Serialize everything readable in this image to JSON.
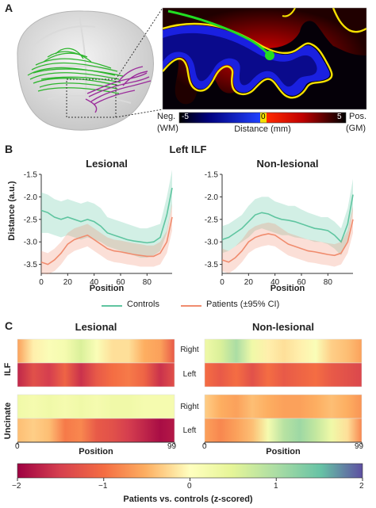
{
  "panel_a": {
    "letter": "A",
    "colorbar": {
      "neg_label": "Neg.",
      "neg_sub": "(WM)",
      "pos_label": "Pos.",
      "pos_sub": "(GM)",
      "min_label": "-5",
      "mid_label": "0",
      "max_label": "5",
      "title": "Distance (mm)"
    },
    "colors": {
      "bundle1": "#2db52d",
      "bundle2": "#9b2d9b",
      "streamline": "#22dd22",
      "contour": "#f5e000"
    }
  },
  "panel_b": {
    "letter": "B",
    "super_title": "Left ILF",
    "legend": {
      "controls": "Controls",
      "patients": "Patients (±95% CI)"
    },
    "colors": {
      "controls": "#5fc5a0",
      "patients": "#f08c6e"
    }
  },
  "panel_c": {
    "letter": "C",
    "titles": [
      "Lesional",
      "Non-lesional"
    ],
    "row_groups": [
      "ILF",
      "Uncinate"
    ],
    "row_labels": [
      "Right",
      "Left",
      "Right",
      "Left"
    ],
    "xticks": [
      "0",
      "99"
    ],
    "xlabel": "Position",
    "colorbar": {
      "ticks": [
        "−2",
        "−1",
        "0",
        "1",
        "2"
      ],
      "label": "Patients vs. controls (z-scored)"
    }
  },
  "chart_data": [
    {
      "type": "line",
      "title": "Lesional",
      "xlabel": "Position",
      "ylabel": "Distance (a.u.)",
      "xlim": [
        0,
        99
      ],
      "ylim": [
        -3.7,
        -1.5
      ],
      "xticks": [
        0,
        20,
        40,
        60,
        80
      ],
      "yticks": [
        -1.5,
        -2.0,
        -2.5,
        -3.0,
        -3.5
      ],
      "x": [
        0,
        5,
        10,
        15,
        20,
        25,
        30,
        35,
        40,
        45,
        50,
        55,
        60,
        65,
        70,
        75,
        80,
        85,
        90,
        95,
        99
      ],
      "series": [
        {
          "name": "Controls",
          "values": [
            -2.3,
            -2.35,
            -2.45,
            -2.5,
            -2.45,
            -2.5,
            -2.55,
            -2.5,
            -2.55,
            -2.65,
            -2.8,
            -2.85,
            -2.9,
            -2.95,
            -2.98,
            -3.0,
            -3.02,
            -3.0,
            -2.9,
            -2.4,
            -1.8
          ],
          "lower": [
            -2.8,
            -2.8,
            -2.85,
            -2.9,
            -2.85,
            -2.9,
            -2.95,
            -2.9,
            -2.95,
            -3.0,
            -3.1,
            -3.15,
            -3.2,
            -3.25,
            -3.3,
            -3.35,
            -3.35,
            -3.3,
            -3.2,
            -2.8,
            -2.2
          ],
          "upper": [
            -1.9,
            -1.95,
            -2.05,
            -2.1,
            -2.05,
            -2.1,
            -2.15,
            -2.1,
            -2.15,
            -2.25,
            -2.45,
            -2.5,
            -2.55,
            -2.6,
            -2.65,
            -2.7,
            -2.7,
            -2.65,
            -2.6,
            -2.0,
            -1.4
          ]
        },
        {
          "name": "Patients",
          "values": [
            -3.45,
            -3.5,
            -3.4,
            -3.25,
            -3.05,
            -2.95,
            -2.9,
            -2.85,
            -2.95,
            -3.05,
            -3.15,
            -3.2,
            -3.22,
            -3.25,
            -3.28,
            -3.3,
            -3.32,
            -3.32,
            -3.25,
            -3.0,
            -2.45
          ],
          "lower": [
            -3.7,
            -3.72,
            -3.65,
            -3.5,
            -3.3,
            -3.2,
            -3.15,
            -3.1,
            -3.2,
            -3.3,
            -3.4,
            -3.45,
            -3.47,
            -3.5,
            -3.52,
            -3.55,
            -3.55,
            -3.55,
            -3.5,
            -3.25,
            -2.75
          ],
          "upper": [
            -3.2,
            -3.25,
            -3.15,
            -3.0,
            -2.8,
            -2.7,
            -2.65,
            -2.6,
            -2.7,
            -2.8,
            -2.9,
            -2.95,
            -2.97,
            -3.0,
            -3.03,
            -3.05,
            -3.08,
            -3.08,
            -3.0,
            -2.75,
            -2.15
          ]
        }
      ]
    },
    {
      "type": "line",
      "title": "Non-lesional",
      "xlabel": "Position",
      "ylabel": "",
      "xlim": [
        0,
        99
      ],
      "ylim": [
        -3.7,
        -1.5
      ],
      "xticks": [
        0,
        20,
        40,
        60,
        80
      ],
      "yticks": [
        -1.5,
        -2.0,
        -2.5,
        -3.0,
        -3.5
      ],
      "x": [
        0,
        5,
        10,
        15,
        20,
        25,
        30,
        35,
        40,
        45,
        50,
        55,
        60,
        65,
        70,
        75,
        80,
        85,
        90,
        95,
        99
      ],
      "series": [
        {
          "name": "Controls",
          "values": [
            -2.95,
            -2.9,
            -2.8,
            -2.7,
            -2.55,
            -2.4,
            -2.35,
            -2.38,
            -2.45,
            -2.5,
            -2.52,
            -2.55,
            -2.6,
            -2.65,
            -2.7,
            -2.72,
            -2.75,
            -2.85,
            -3.0,
            -2.6,
            -1.95
          ],
          "lower": [
            -3.25,
            -3.2,
            -3.1,
            -3.0,
            -2.9,
            -2.75,
            -2.7,
            -2.75,
            -2.8,
            -2.85,
            -2.85,
            -2.9,
            -2.92,
            -2.95,
            -3.0,
            -3.0,
            -3.05,
            -3.15,
            -3.3,
            -2.95,
            -2.3
          ],
          "upper": [
            -2.65,
            -2.6,
            -2.5,
            -2.4,
            -2.2,
            -2.05,
            -2.0,
            -2.0,
            -2.1,
            -2.15,
            -2.2,
            -2.2,
            -2.28,
            -2.35,
            -2.4,
            -2.45,
            -2.45,
            -2.55,
            -2.7,
            -2.25,
            -1.6
          ]
        },
        {
          "name": "Patients",
          "values": [
            -3.4,
            -3.45,
            -3.35,
            -3.2,
            -3.0,
            -2.9,
            -2.85,
            -2.82,
            -2.85,
            -2.95,
            -3.05,
            -3.1,
            -3.15,
            -3.2,
            -3.22,
            -3.25,
            -3.28,
            -3.3,
            -3.25,
            -3.0,
            -2.5
          ],
          "lower": [
            -3.65,
            -3.7,
            -3.6,
            -3.45,
            -3.25,
            -3.15,
            -3.1,
            -3.07,
            -3.1,
            -3.2,
            -3.3,
            -3.35,
            -3.4,
            -3.45,
            -3.47,
            -3.5,
            -3.52,
            -3.55,
            -3.5,
            -3.25,
            -2.8
          ],
          "upper": [
            -3.15,
            -3.2,
            -3.1,
            -2.95,
            -2.75,
            -2.65,
            -2.6,
            -2.57,
            -2.6,
            -2.7,
            -2.8,
            -2.85,
            -2.9,
            -2.95,
            -2.97,
            -3.0,
            -3.03,
            -3.05,
            -3.0,
            -2.75,
            -2.2
          ]
        }
      ]
    },
    {
      "type": "heatmap",
      "title": "Lesional / Non-lesional",
      "xlabel": "Position",
      "x": [
        0,
        10,
        20,
        30,
        40,
        50,
        60,
        70,
        80,
        90,
        99
      ],
      "zlim": [
        -2,
        2
      ],
      "rows": [
        {
          "group": "ILF",
          "side": "Right",
          "panel": "Lesional",
          "values": [
            -0.6,
            -0.1,
            0.1,
            0.2,
            0.6,
            0.1,
            -0.2,
            -0.2,
            -0.5,
            -0.6,
            -1.2
          ]
        },
        {
          "group": "ILF",
          "side": "Left",
          "panel": "Lesional",
          "values": [
            -1.7,
            -1.3,
            -1.5,
            -1.1,
            -1.6,
            -1.2,
            -1.0,
            -0.9,
            -1.1,
            -1.6,
            -1.3
          ]
        },
        {
          "group": "Uncinate",
          "side": "Right",
          "panel": "Lesional",
          "values": [
            0.3,
            0.2,
            0.3,
            0.2,
            0.3,
            0.2,
            0.3,
            0.3,
            0.2,
            0.2,
            0.2
          ]
        },
        {
          "group": "Uncinate",
          "side": "Left",
          "panel": "Lesional",
          "values": [
            -0.4,
            -0.3,
            -0.4,
            -0.9,
            -0.8,
            -1.2,
            -1.3,
            -1.5,
            -1.7,
            -1.9,
            -1.8
          ]
        },
        {
          "group": "ILF",
          "side": "Right",
          "panel": "Non-lesional",
          "values": [
            0.3,
            0.6,
            1.0,
            0.3,
            -0.1,
            -0.2,
            -0.1,
            0.1,
            -0.3,
            -0.4,
            -0.6
          ]
        },
        {
          "group": "ILF",
          "side": "Left",
          "panel": "Non-lesional",
          "values": [
            -1.0,
            -1.2,
            -1.0,
            -1.3,
            -1.0,
            -1.2,
            -1.1,
            -1.0,
            -1.2,
            -1.3,
            -1.4
          ]
        },
        {
          "group": "Uncinate",
          "side": "Right",
          "panel": "Non-lesional",
          "values": [
            -0.3,
            -0.5,
            -0.6,
            -0.4,
            -0.5,
            -0.6,
            -0.6,
            -0.5,
            -0.4,
            -0.5,
            -0.7
          ]
        },
        {
          "group": "Uncinate",
          "side": "Left",
          "panel": "Non-lesional",
          "values": [
            -0.6,
            -0.8,
            -0.6,
            -0.4,
            0.2,
            0.9,
            1.1,
            0.8,
            0.3,
            -0.2,
            -0.8
          ]
        }
      ]
    }
  ]
}
